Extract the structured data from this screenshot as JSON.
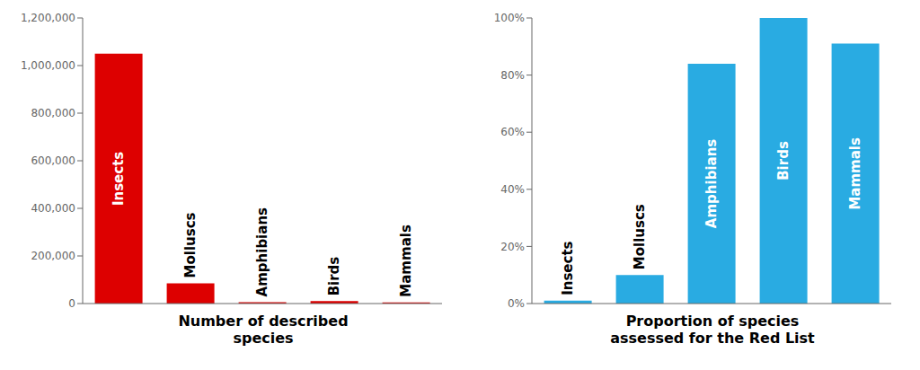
{
  "chart_data": [
    {
      "type": "bar",
      "categories": [
        "Insects",
        "Molluscs",
        "Amphibians",
        "Birds",
        "Mammals"
      ],
      "values": [
        1050000,
        85000,
        6000,
        10000,
        5000
      ],
      "color": "#DD0000",
      "xlabel": "Number of described\nspecies",
      "ylim": [
        0,
        1200000
      ],
      "yticks": [
        0,
        {
          "value": 200000,
          "label": "200,000"
        },
        {
          "value": 400000,
          "label": "400,000"
        },
        {
          "value": 600000,
          "label": "600,000"
        },
        {
          "value": 800000,
          "label": "800,000"
        },
        {
          "value": 1000000,
          "label": "1,000,000"
        },
        {
          "value": 1200000,
          "label": "1,200,000"
        }
      ],
      "tick_labels": "y"
    },
    {
      "type": "bar",
      "categories": [
        "Insects",
        "Molluscs",
        "Amphibians",
        "Birds",
        "Mammals"
      ],
      "values": [
        1,
        10,
        84,
        100,
        91
      ],
      "color": "#29ABE2",
      "xlabel": "Proportion of species\nassessed for the Red List",
      "ylim": [
        0,
        100
      ],
      "yticks": [
        {
          "value": 0,
          "label": "0%"
        },
        {
          "value": 20,
          "label": "20%"
        },
        {
          "value": 40,
          "label": "40%"
        },
        {
          "value": 60,
          "label": "60%"
        },
        {
          "value": 80,
          "label": "80%"
        },
        {
          "value": 100,
          "label": "100%"
        }
      ],
      "tick_labels": "y"
    }
  ]
}
